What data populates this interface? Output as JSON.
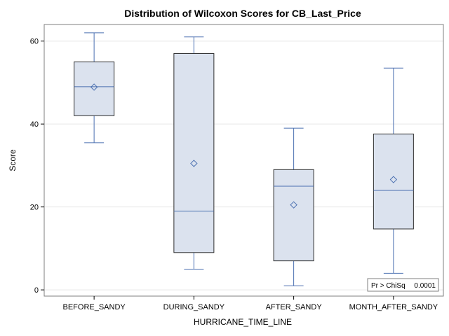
{
  "chart_data": {
    "type": "box",
    "title": "Distribution of Wilcoxon Scores for CB_Last_Price",
    "xlabel": "HURRICANE_TIME_LINE",
    "ylabel": "Score",
    "ylim": [
      -1.5,
      64
    ],
    "yticks": [
      0,
      20,
      40,
      60
    ],
    "grid": "y",
    "categories": [
      "BEFORE_SANDY",
      "DURING_SANDY",
      "AFTER_SANDY",
      "MONTH_AFTER_SANDY"
    ],
    "boxes": [
      {
        "category": "BEFORE_SANDY",
        "min": 35.5,
        "q1": 42,
        "median": 49,
        "q3": 55,
        "max": 62,
        "mean": 48.9
      },
      {
        "category": "DURING_SANDY",
        "min": 5,
        "q1": 9,
        "median": 19,
        "q3": 57,
        "max": 61,
        "mean": 30.5
      },
      {
        "category": "AFTER_SANDY",
        "min": 1,
        "q1": 7,
        "median": 25,
        "q3": 29,
        "max": 39,
        "mean": 20.5
      },
      {
        "category": "MONTH_AFTER_SANDY",
        "min": 4,
        "q1": 14.7,
        "median": 24,
        "q3": 37.6,
        "max": 53.5,
        "mean": 26.6
      }
    ],
    "inset": {
      "label": "Pr > ChiSq",
      "value": "0.0001",
      "position": "bottom-right"
    },
    "colors": {
      "box_fill": "#dbe2ee",
      "box_edge": "#2f2f2f",
      "median_line": "#4a6fb0",
      "whisker": "#4a6fb0",
      "mean_marker": "#4a6fb0",
      "grid": "#e6e6e6",
      "frame": "#7f7f7f"
    }
  }
}
